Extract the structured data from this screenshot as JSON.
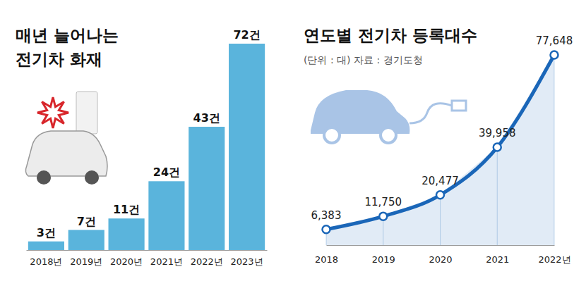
{
  "chart_data": [
    {
      "type": "bar",
      "title": "매년 늘어나는 전기차 화재",
      "categories": [
        "2018년",
        "2019년",
        "2020년",
        "2021년",
        "2022년",
        "2023년"
      ],
      "values": [
        3,
        7,
        11,
        24,
        43,
        72
      ],
      "value_labels": [
        "3건",
        "7건",
        "11건",
        "24건",
        "43건",
        "72건"
      ],
      "color": "#5ab4dc",
      "data_labels": true,
      "tick_labels": "x"
    },
    {
      "type": "line",
      "title": "연도별 전기차 등록대수",
      "subtitle": "(단위 : 대) 자료 : 경기도청",
      "categories": [
        "2018",
        "2019",
        "2020",
        "2021",
        "2022년"
      ],
      "values": [
        6383,
        11750,
        20477,
        39958,
        77648
      ],
      "value_labels": [
        "6,383",
        "11,750",
        "20,477",
        "39,958",
        "77,648"
      ],
      "color": "#1a66b8",
      "marker": "circle",
      "data_labels": true,
      "tick_labels": "x"
    }
  ]
}
